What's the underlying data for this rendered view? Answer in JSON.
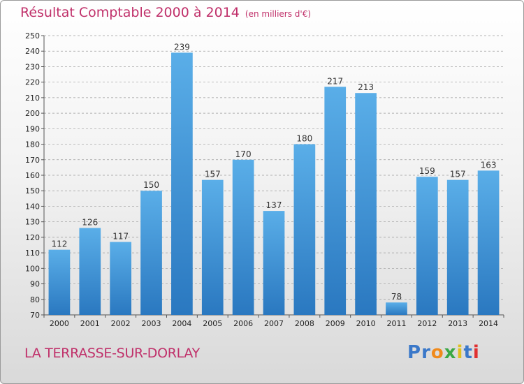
{
  "title": "Résultat Comptable 2000 à 2014",
  "subtitle": "(en milliers d'€)",
  "commune": "LA TERRASSE-SUR-DORLAY",
  "logo": {
    "text": "Proxiti",
    "letters": [
      "P",
      "r",
      "o",
      "x",
      "i",
      "t",
      "i"
    ],
    "colors": [
      "#3a78c9",
      "#3a78c9",
      "#f08a1c",
      "#3aa845",
      "#e0c020",
      "#3a78c9",
      "#e03030"
    ]
  },
  "colors": {
    "accent": "#c0306a",
    "bar_top": "#5aaee8",
    "bar_bottom": "#2a78c0",
    "grid": "#9a9a9a"
  },
  "chart_data": {
    "type": "bar",
    "categories": [
      "2000",
      "2001",
      "2002",
      "2003",
      "2004",
      "2005",
      "2006",
      "2007",
      "2008",
      "2009",
      "2010",
      "2011",
      "2012",
      "2013",
      "2014"
    ],
    "values": [
      112,
      126,
      117,
      150,
      239,
      157,
      170,
      137,
      180,
      217,
      213,
      78,
      159,
      157,
      163
    ],
    "ylim": [
      70,
      250
    ],
    "yticks": [
      70,
      80,
      90,
      100,
      110,
      120,
      130,
      140,
      150,
      160,
      170,
      180,
      190,
      200,
      210,
      220,
      230,
      240,
      250
    ],
    "grid": true
  }
}
